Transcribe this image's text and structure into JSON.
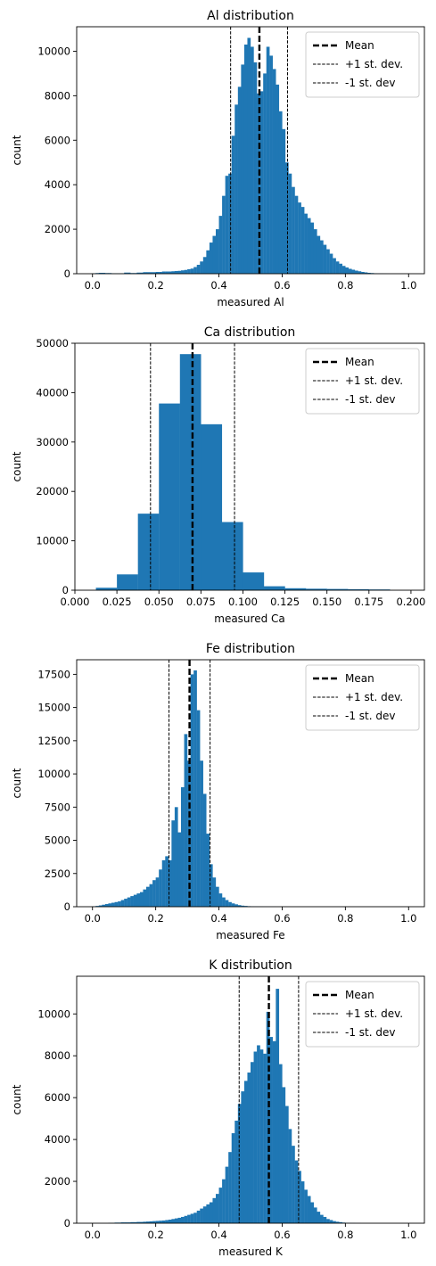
{
  "chart_data": [
    {
      "type": "bar",
      "title": "Al distribution",
      "xlabel": "measured Al",
      "ylabel": "count",
      "xlim": [
        -0.05,
        1.05
      ],
      "ylim": [
        0,
        11100
      ],
      "xticks": [
        0.0,
        0.2,
        0.4,
        0.6,
        0.8,
        1.0
      ],
      "xtick_labels": [
        "0.0",
        "0.2",
        "0.4",
        "0.6",
        "0.8",
        "1.0"
      ],
      "yticks": [
        0,
        2000,
        4000,
        6000,
        8000,
        10000
      ],
      "ytick_labels": [
        "0",
        "2000",
        "4000",
        "6000",
        "8000",
        "10000"
      ],
      "bins": {
        "start": 0.0,
        "width": 0.01,
        "counts": [
          20,
          30,
          40,
          40,
          30,
          30,
          20,
          20,
          20,
          20,
          50,
          50,
          30,
          30,
          50,
          50,
          70,
          70,
          70,
          70,
          80,
          80,
          100,
          100,
          100,
          110,
          120,
          130,
          150,
          170,
          200,
          230,
          300,
          400,
          550,
          750,
          1050,
          1400,
          1700,
          2000,
          2600,
          3500,
          4400,
          4500,
          6200,
          7600,
          8400,
          9400,
          10300,
          10600,
          10200,
          9500,
          8100,
          8200,
          9000,
          10200,
          9800,
          9200,
          8500,
          7300,
          6500,
          5000,
          4500,
          3900,
          3500,
          3200,
          3000,
          2700,
          2500,
          2300,
          2000,
          1700,
          1500,
          1300,
          1100,
          900,
          700,
          550,
          450,
          350,
          280,
          220,
          180,
          140,
          110,
          80,
          60,
          40,
          30,
          20,
          15,
          10,
          8,
          5
        ]
      },
      "lines": {
        "mean": 0.528,
        "plus_1_sd": 0.617,
        "minus_1_sd": 0.437
      },
      "legend": [
        "Mean",
        "+1 st. dev.",
        "-1 st. dev"
      ],
      "legend_position": "upper right"
    },
    {
      "type": "bar",
      "title": "Ca distribution",
      "xlabel": "measured Ca",
      "ylabel": "count",
      "xlim": [
        0.0,
        0.208
      ],
      "ylim": [
        0,
        50000
      ],
      "xticks": [
        0.0,
        0.025,
        0.05,
        0.075,
        0.1,
        0.125,
        0.15,
        0.175,
        0.2
      ],
      "xtick_labels": [
        "0.000",
        "0.025",
        "0.050",
        "0.075",
        "0.100",
        "0.125",
        "0.150",
        "0.175",
        "0.200"
      ],
      "yticks": [
        0,
        10000,
        20000,
        30000,
        40000,
        50000
      ],
      "ytick_labels": [
        "0",
        "10000",
        "20000",
        "30000",
        "40000",
        "50000"
      ],
      "bins": {
        "start": 0.0125,
        "width": 0.0125,
        "counts": [
          500,
          3200,
          15500,
          37800,
          47800,
          33600,
          13800,
          3600,
          800,
          400,
          300,
          250,
          200,
          150
        ]
      },
      "lines": {
        "mean": 0.07,
        "plus_1_sd": 0.095,
        "minus_1_sd": 0.045
      },
      "legend": [
        "Mean",
        "+1 st. dev.",
        "-1 st. dev"
      ],
      "legend_position": "upper right"
    },
    {
      "type": "bar",
      "title": "Fe distribution",
      "xlabel": "measured Fe",
      "ylabel": "count",
      "xlim": [
        -0.05,
        1.05
      ],
      "ylim": [
        0,
        18600
      ],
      "xticks": [
        0.0,
        0.2,
        0.4,
        0.6,
        0.8,
        1.0
      ],
      "xtick_labels": [
        "0.0",
        "0.2",
        "0.4",
        "0.6",
        "0.8",
        "1.0"
      ],
      "yticks": [
        0,
        2500,
        5000,
        7500,
        10000,
        12500,
        15000,
        17500
      ],
      "ytick_labels": [
        "0",
        "2500",
        "5000",
        "7500",
        "10000",
        "12500",
        "15000",
        "17500"
      ],
      "bins": {
        "start": 0.0,
        "width": 0.01,
        "counts": [
          30,
          60,
          100,
          150,
          200,
          250,
          300,
          350,
          400,
          500,
          600,
          700,
          800,
          900,
          1000,
          1100,
          1300,
          1500,
          1700,
          2000,
          2200,
          2800,
          3500,
          3800,
          3500,
          6500,
          7500,
          5600,
          9000,
          13000,
          11000,
          17500,
          17800,
          14800,
          11000,
          8500,
          5500,
          3200,
          2200,
          1500,
          1000,
          700,
          500,
          350,
          250,
          180,
          120,
          80,
          60,
          40,
          30,
          25,
          20,
          15,
          10,
          8,
          6,
          5
        ]
      },
      "lines": {
        "mean": 0.307,
        "plus_1_sd": 0.372,
        "minus_1_sd": 0.242
      },
      "legend": [
        "Mean",
        "+1 st. dev.",
        "-1 st. dev"
      ],
      "legend_position": "upper right"
    },
    {
      "type": "bar",
      "title": "K distribution",
      "xlabel": "measured K",
      "ylabel": "count",
      "xlim": [
        -0.05,
        1.05
      ],
      "ylim": [
        0,
        11800
      ],
      "xticks": [
        0.0,
        0.2,
        0.4,
        0.6,
        0.8,
        1.0
      ],
      "xtick_labels": [
        "0.0",
        "0.2",
        "0.4",
        "0.6",
        "0.8",
        "1.0"
      ],
      "yticks": [
        0,
        2000,
        4000,
        6000,
        8000,
        10000
      ],
      "ytick_labels": [
        "0",
        "2000",
        "4000",
        "6000",
        "8000",
        "10000"
      ],
      "bins": {
        "start": 0.05,
        "width": 0.01,
        "counts": [
          20,
          20,
          30,
          30,
          40,
          40,
          40,
          50,
          50,
          60,
          60,
          70,
          80,
          90,
          100,
          110,
          120,
          130,
          150,
          170,
          200,
          230,
          260,
          300,
          350,
          400,
          450,
          500,
          600,
          700,
          800,
          900,
          1000,
          1200,
          1400,
          1700,
          2100,
          2700,
          3400,
          4300,
          4900,
          5700,
          6300,
          6800,
          7200,
          7700,
          8200,
          8500,
          8300,
          8100,
          10100,
          8900,
          8700,
          11200,
          7600,
          6500,
          5600,
          4500,
          3700,
          3000,
          2500,
          2000,
          1600,
          1300,
          1000,
          750,
          550,
          400,
          300,
          200,
          150,
          100,
          70,
          50,
          30,
          20,
          15,
          10,
          5,
          5
        ]
      },
      "lines": {
        "mean": 0.558,
        "plus_1_sd": 0.652,
        "minus_1_sd": 0.464
      },
      "legend": [
        "Mean",
        "+1 st. dev.",
        "-1 st. dev"
      ],
      "legend_position": "upper right"
    }
  ]
}
